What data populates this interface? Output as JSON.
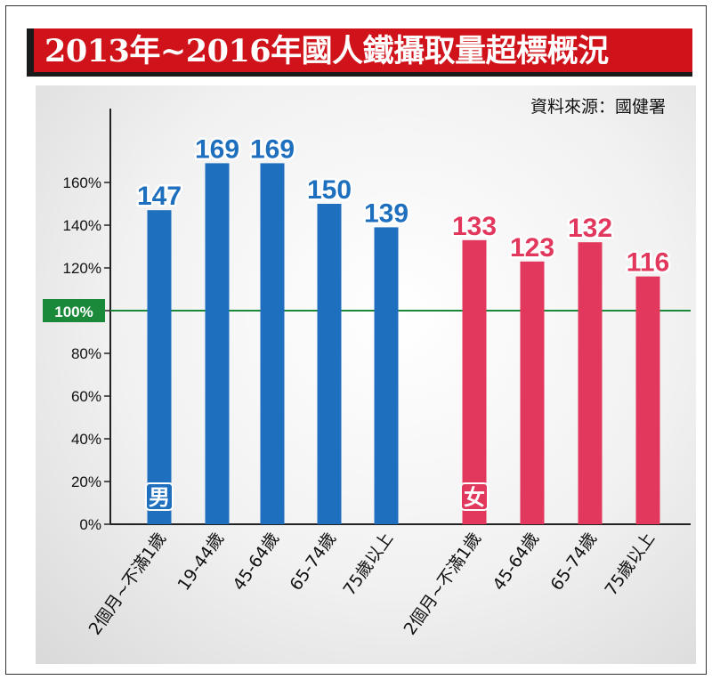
{
  "header": {
    "title": "2013年~2016年國人鐵攝取量超標概況"
  },
  "source": "資料來源：國健署",
  "colors": {
    "male": "#1f6fbf",
    "female": "#e3385d",
    "reference": "#1a8a3a",
    "title_bg": "#d0131a"
  },
  "chart_data": {
    "type": "bar",
    "title": "2013年~2016年國人鐵攝取量超標概況",
    "yticks": [
      "0%",
      "20%",
      "40%",
      "60%",
      "80%",
      "100%",
      "120%",
      "140%",
      "160%"
    ],
    "ylim": [
      0,
      180
    ],
    "reference_line": {
      "value": 100,
      "label": "100%"
    },
    "series": [
      {
        "name": "男",
        "categories": [
          "2個月~不滿1歲",
          "19-44歲",
          "45-64歲",
          "65-74歲",
          "75歲以上"
        ],
        "values": [
          147,
          169,
          169,
          150,
          139
        ]
      },
      {
        "name": "女",
        "categories": [
          "2個月~不滿1歲",
          "45-64歲",
          "65-74歲",
          "75歲以上"
        ],
        "values": [
          133,
          123,
          132,
          116
        ]
      }
    ]
  }
}
